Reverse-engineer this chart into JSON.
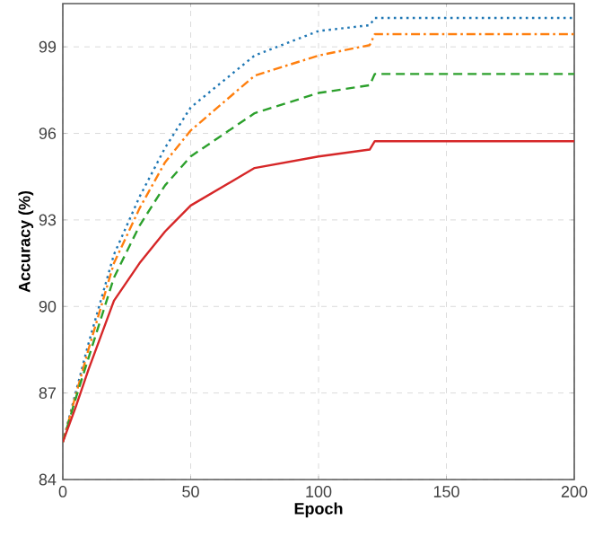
{
  "chart_data": {
    "type": "line",
    "xlabel": "Epoch",
    "ylabel": "Accuracy (%)",
    "xlim": [
      0,
      200
    ],
    "ylim": [
      84,
      100.5
    ],
    "xticks": [
      0,
      50,
      100,
      150,
      200
    ],
    "yticks": [
      84,
      87,
      90,
      93,
      96,
      99
    ],
    "grid": true,
    "marker": "none",
    "series": [
      {
        "color": "#1f77b4",
        "line_style": "dotted",
        "x": [
          0,
          5,
          10,
          20,
          30,
          40,
          50,
          75,
          100,
          120,
          122,
          200
        ],
        "values": [
          85.3,
          87.0,
          88.7,
          91.8,
          93.8,
          95.5,
          96.9,
          98.7,
          99.55,
          99.75,
          100.0,
          100.0
        ]
      },
      {
        "color": "#ff7f0e",
        "line_style": "dashdot",
        "x": [
          0,
          5,
          10,
          20,
          30,
          40,
          50,
          75,
          100,
          120,
          122,
          200
        ],
        "values": [
          85.3,
          86.9,
          88.5,
          91.5,
          93.4,
          95.0,
          96.1,
          98.0,
          98.7,
          99.06,
          99.44,
          99.44
        ]
      },
      {
        "color": "#2ca02c",
        "line_style": "dashed",
        "x": [
          0,
          5,
          10,
          20,
          30,
          40,
          50,
          75,
          100,
          120,
          122,
          200
        ],
        "values": [
          85.3,
          86.8,
          88.2,
          91.0,
          92.8,
          94.2,
          95.2,
          96.7,
          97.4,
          97.67,
          98.06,
          98.06
        ]
      },
      {
        "color": "#d62728",
        "line_style": "solid",
        "x": [
          0,
          5,
          10,
          20,
          30,
          40,
          50,
          75,
          100,
          120,
          122,
          200
        ],
        "values": [
          85.3,
          86.5,
          87.8,
          90.2,
          91.5,
          92.6,
          93.5,
          94.8,
          95.2,
          95.44,
          95.73,
          95.73
        ]
      }
    ]
  }
}
